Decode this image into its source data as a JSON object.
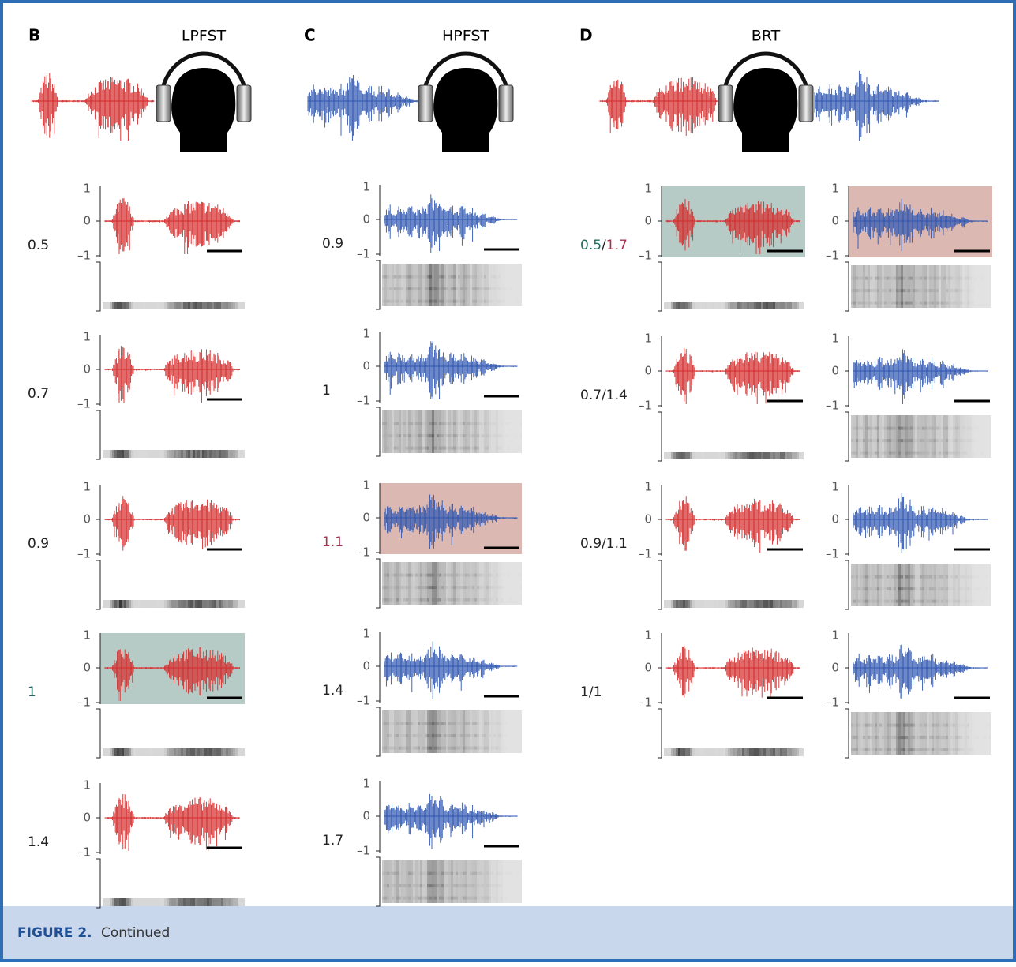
{
  "panels": [
    {
      "letter": "B",
      "title": "LPFST",
      "rows": [
        {
          "label": "0.5"
        },
        {
          "label": "0.7"
        },
        {
          "label": "0.9"
        },
        {
          "label": "1",
          "label_color": "#1f6b60",
          "highlight": "#b7cbc6"
        },
        {
          "label": "1.4"
        }
      ]
    },
    {
      "letter": "C",
      "title": "HPFST",
      "rows": [
        {
          "label": "0.9"
        },
        {
          "label": "1"
        },
        {
          "label": "1.1",
          "label_color": "#a8304f",
          "highlight": "#dcb8b2"
        },
        {
          "label": "1.4"
        },
        {
          "label": "1.7"
        }
      ]
    },
    {
      "letter": "D",
      "title": "BRT",
      "separator": "/",
      "rows": [
        {
          "left": "0.5",
          "right": "1.7",
          "left_color": "#1f6b60",
          "right_color": "#a8304f",
          "left_highlight": "#b7cbc6",
          "right_highlight": "#dcb8b2"
        },
        {
          "left": "0.7",
          "right": "1.4"
        },
        {
          "left": "0.9",
          "right": "1.1"
        },
        {
          "left": "1",
          "right": "1"
        }
      ]
    }
  ],
  "axis_labels": [
    "1",
    "0",
    "–1"
  ],
  "caption": {
    "label": "FIGURE 2.",
    "text": "Continued"
  }
}
